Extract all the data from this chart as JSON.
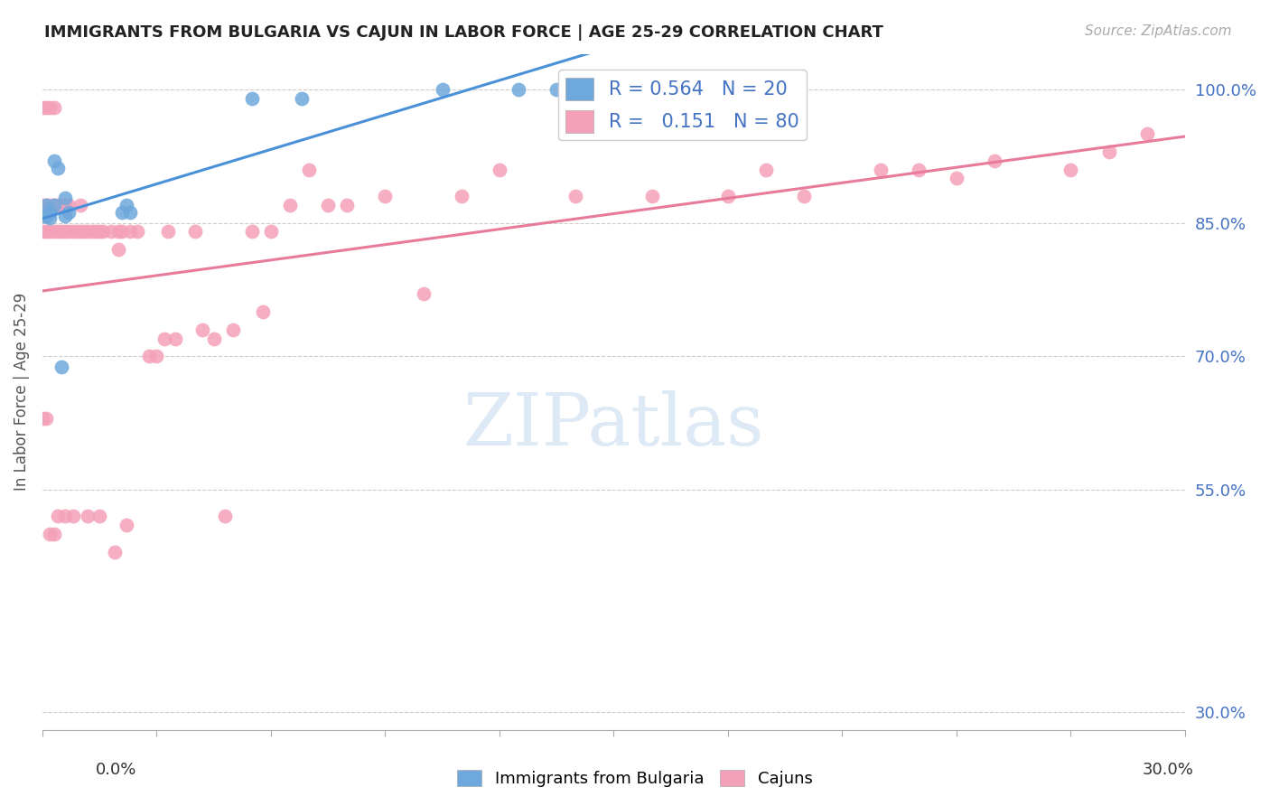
{
  "title": "IMMIGRANTS FROM BULGARIA VS CAJUN IN LABOR FORCE | AGE 25-29 CORRELATION CHART",
  "source": "Source: ZipAtlas.com",
  "ylabel": "In Labor Force | Age 25-29",
  "y_ticks": [
    0.3,
    0.55,
    0.7,
    0.85,
    1.0
  ],
  "y_tick_labels": [
    "30.0%",
    "55.0%",
    "70.0%",
    "85.0%",
    "100.0%"
  ],
  "bulgaria_color": "#6ea8dc",
  "cajun_color": "#f4a0b8",
  "bulgaria_line_color": "#4a90d9",
  "cajun_line_color": "#e87a9a",
  "xlim": [
    0.0,
    0.3
  ],
  "ylim": [
    0.28,
    1.04
  ],
  "bulgaria_x": [
    0.0,
    0.001,
    0.001,
    0.002,
    0.002,
    0.003,
    0.003,
    0.004,
    0.005,
    0.006,
    0.006,
    0.007,
    0.021,
    0.022,
    0.023,
    0.055,
    0.068,
    0.105,
    0.125,
    0.135
  ],
  "bulgaria_y": [
    0.858,
    0.858,
    0.87,
    0.856,
    0.862,
    0.87,
    0.92,
    0.912,
    0.688,
    0.878,
    0.858,
    0.862,
    0.862,
    0.87,
    0.862,
    0.99,
    0.99,
    1.0,
    1.0,
    1.0
  ],
  "cajun_x": [
    0.0,
    0.0,
    0.0,
    0.001,
    0.001,
    0.001,
    0.002,
    0.002,
    0.002,
    0.003,
    0.003,
    0.003,
    0.004,
    0.004,
    0.005,
    0.005,
    0.006,
    0.006,
    0.007,
    0.007,
    0.008,
    0.009,
    0.01,
    0.01,
    0.011,
    0.012,
    0.013,
    0.014,
    0.015,
    0.016,
    0.018,
    0.019,
    0.02,
    0.021,
    0.022,
    0.023,
    0.025,
    0.028,
    0.03,
    0.032,
    0.033,
    0.035,
    0.04,
    0.042,
    0.045,
    0.048,
    0.05,
    0.055,
    0.058,
    0.06,
    0.065,
    0.07,
    0.075,
    0.08,
    0.09,
    0.1,
    0.11,
    0.12,
    0.14,
    0.16,
    0.18,
    0.19,
    0.2,
    0.22,
    0.23,
    0.24,
    0.25,
    0.27,
    0.28,
    0.29,
    0.0,
    0.001,
    0.002,
    0.003,
    0.004,
    0.006,
    0.008,
    0.012,
    0.015,
    0.02
  ],
  "cajun_y": [
    0.84,
    0.87,
    0.98,
    0.84,
    0.87,
    0.98,
    0.84,
    0.87,
    0.98,
    0.84,
    0.87,
    0.98,
    0.84,
    0.87,
    0.84,
    0.87,
    0.84,
    0.87,
    0.84,
    0.87,
    0.84,
    0.84,
    0.84,
    0.87,
    0.84,
    0.84,
    0.84,
    0.84,
    0.84,
    0.84,
    0.84,
    0.48,
    0.84,
    0.84,
    0.51,
    0.84,
    0.84,
    0.7,
    0.7,
    0.72,
    0.84,
    0.72,
    0.84,
    0.73,
    0.72,
    0.52,
    0.73,
    0.84,
    0.75,
    0.84,
    0.87,
    0.91,
    0.87,
    0.87,
    0.88,
    0.77,
    0.88,
    0.91,
    0.88,
    0.88,
    0.88,
    0.91,
    0.88,
    0.91,
    0.91,
    0.9,
    0.92,
    0.91,
    0.93,
    0.95,
    0.63,
    0.63,
    0.5,
    0.5,
    0.52,
    0.52,
    0.52,
    0.52,
    0.52,
    0.82
  ]
}
